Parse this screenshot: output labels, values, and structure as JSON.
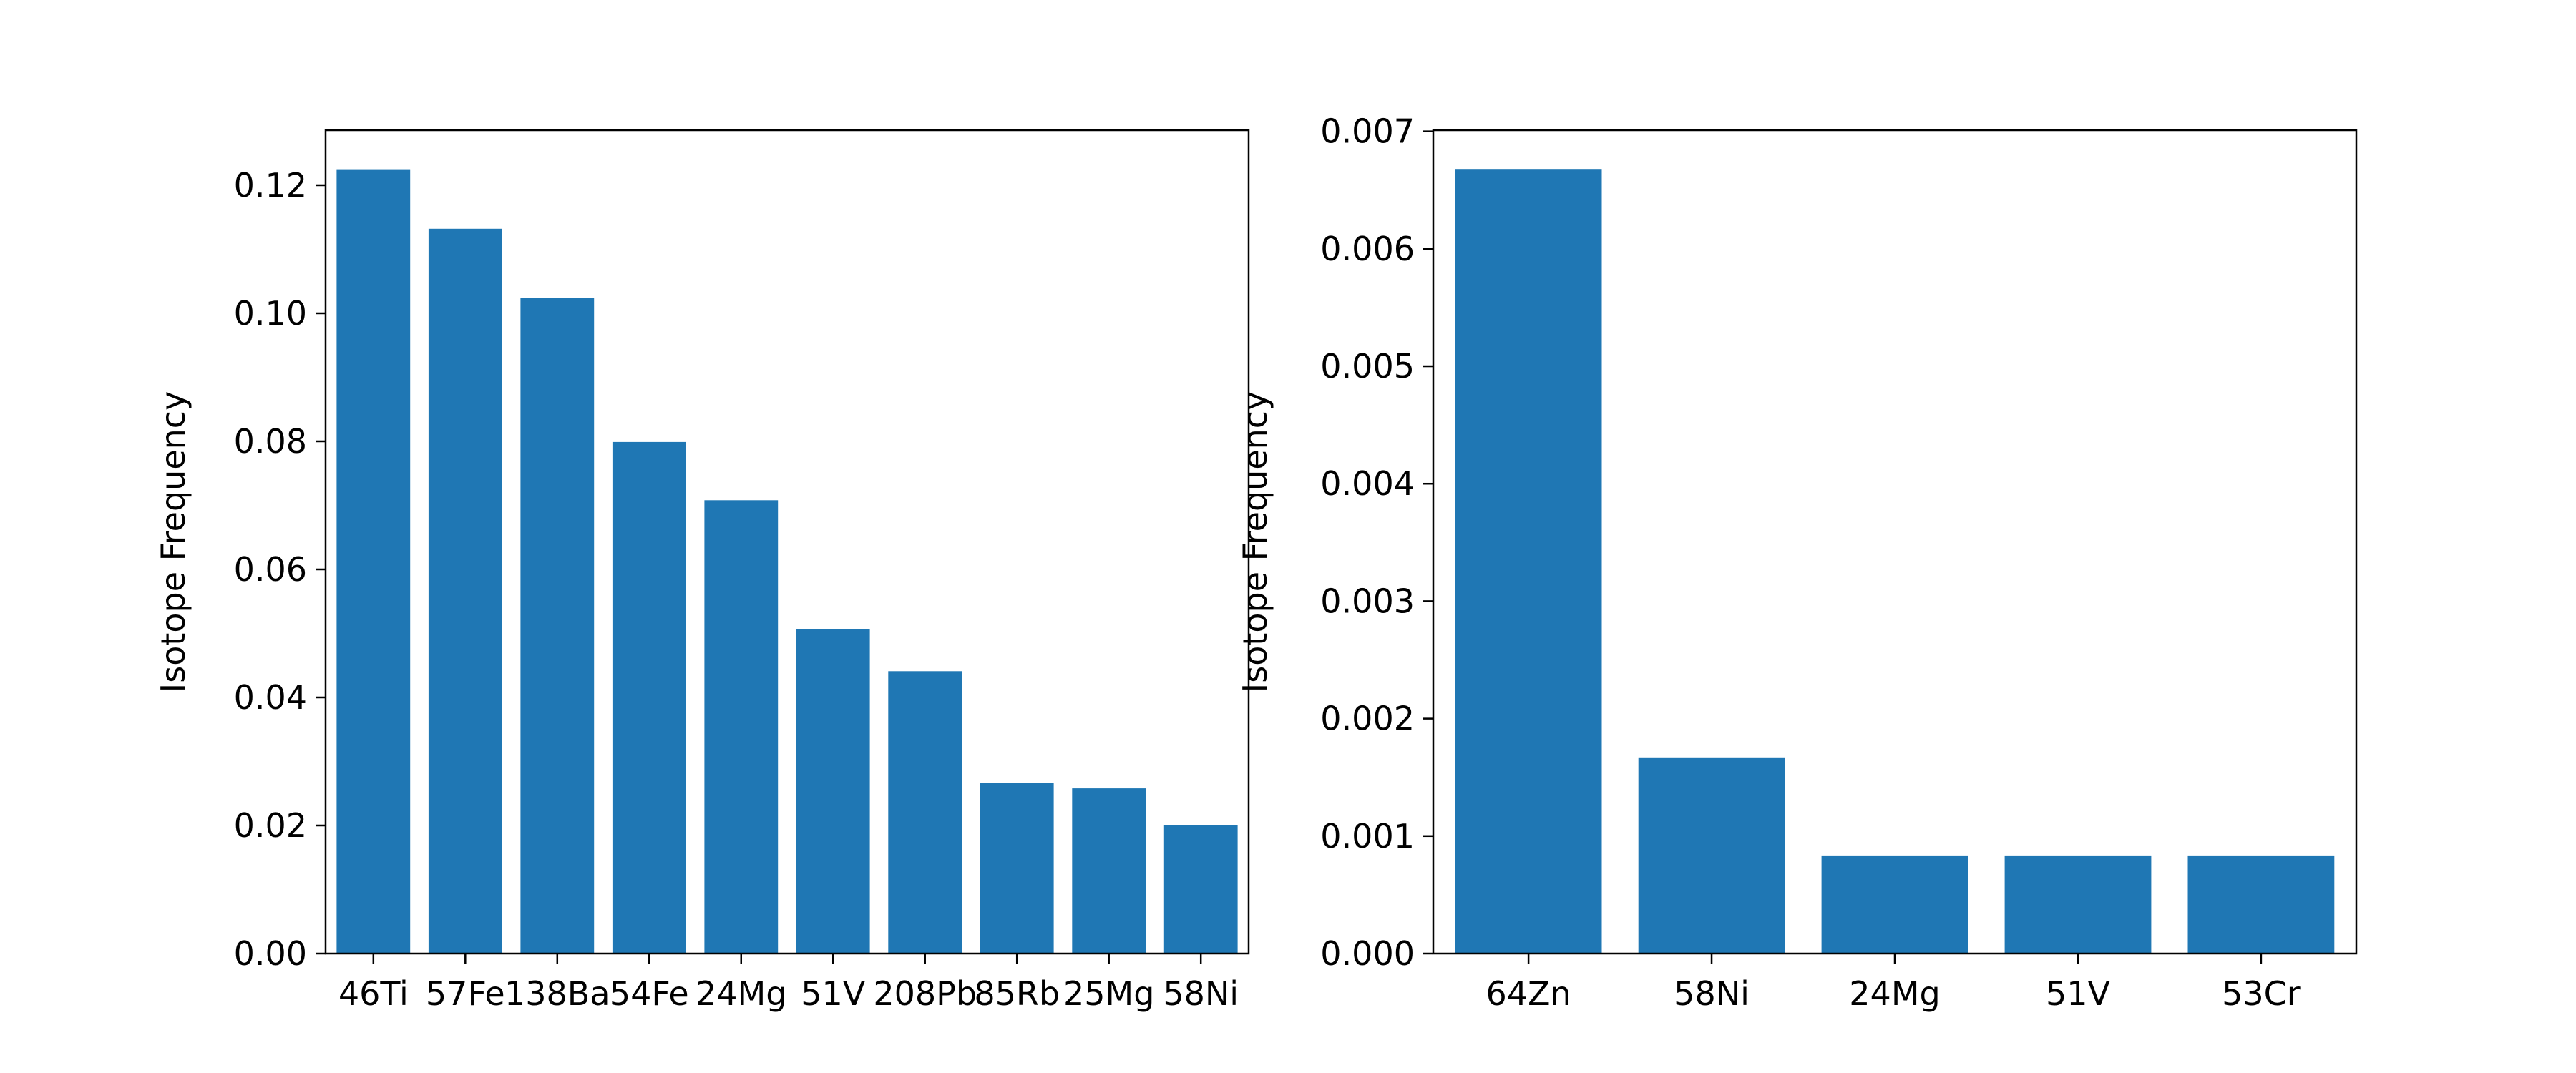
{
  "chart_data": [
    {
      "type": "bar",
      "ylabel": "Isotope Frequency",
      "xlabel": "",
      "categories": [
        "46Ti",
        "57Fe",
        "138Ba",
        "54Fe",
        "24Mg",
        "51V",
        "208Pb",
        "85Rb",
        "25Mg",
        "58Ni"
      ],
      "values": [
        0.1225,
        0.1132,
        0.1024,
        0.0799,
        0.0708,
        0.0507,
        0.0441,
        0.0266,
        0.0258,
        0.02
      ],
      "ylim": [
        0,
        0.1286
      ],
      "yticks": [
        0.0,
        0.02,
        0.04,
        0.06,
        0.08,
        0.1,
        0.12
      ],
      "ytick_labels": [
        "0.00",
        "0.02",
        "0.04",
        "0.06",
        "0.08",
        "0.10",
        "0.12"
      ],
      "bar_color": "#1f77b4"
    },
    {
      "type": "bar",
      "ylabel": "Isotope Frequency",
      "xlabel": "",
      "categories": [
        "64Zn",
        "58Ni",
        "24Mg",
        "51V",
        "53Cr"
      ],
      "values": [
        0.00668,
        0.00167,
        0.000835,
        0.000835,
        0.000835
      ],
      "ylim": [
        0,
        0.00701
      ],
      "yticks": [
        0.0,
        0.001,
        0.002,
        0.003,
        0.004,
        0.005,
        0.006,
        0.007
      ],
      "ytick_labels": [
        "0.000",
        "0.001",
        "0.002",
        "0.003",
        "0.004",
        "0.005",
        "0.006",
        "0.007"
      ],
      "bar_color": "#1f77b4"
    }
  ]
}
